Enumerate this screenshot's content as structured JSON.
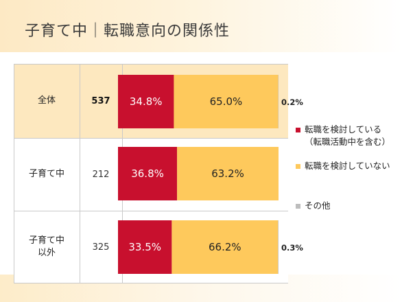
{
  "title": "子育て中｜転職意向の関係性",
  "chart_data": {
    "type": "bar",
    "stacked": true,
    "orientation": "horizontal",
    "percent_stacked": true,
    "categories": [
      "全体",
      "子育て中",
      "子育て中\n以外"
    ],
    "n": [
      "537",
      "212",
      "325"
    ],
    "series": [
      {
        "name": "転職を検討している\n（転職活動中を含む）",
        "values": [
          34.8,
          36.8,
          33.5
        ],
        "labels": [
          "34.8%",
          "36.8%",
          "33.5%"
        ],
        "color": "#c8102e"
      },
      {
        "name": "転職を検討していない",
        "values": [
          65.0,
          63.2,
          66.2
        ],
        "labels": [
          "65.0%",
          "63.2%",
          "66.2%"
        ],
        "color": "#fec95c"
      },
      {
        "name": "その他",
        "values": [
          0.2,
          0.0,
          0.3
        ],
        "labels": [
          "0.2%",
          "",
          "0.3%"
        ],
        "color": "#bdbdbd"
      }
    ],
    "legend": "right"
  }
}
